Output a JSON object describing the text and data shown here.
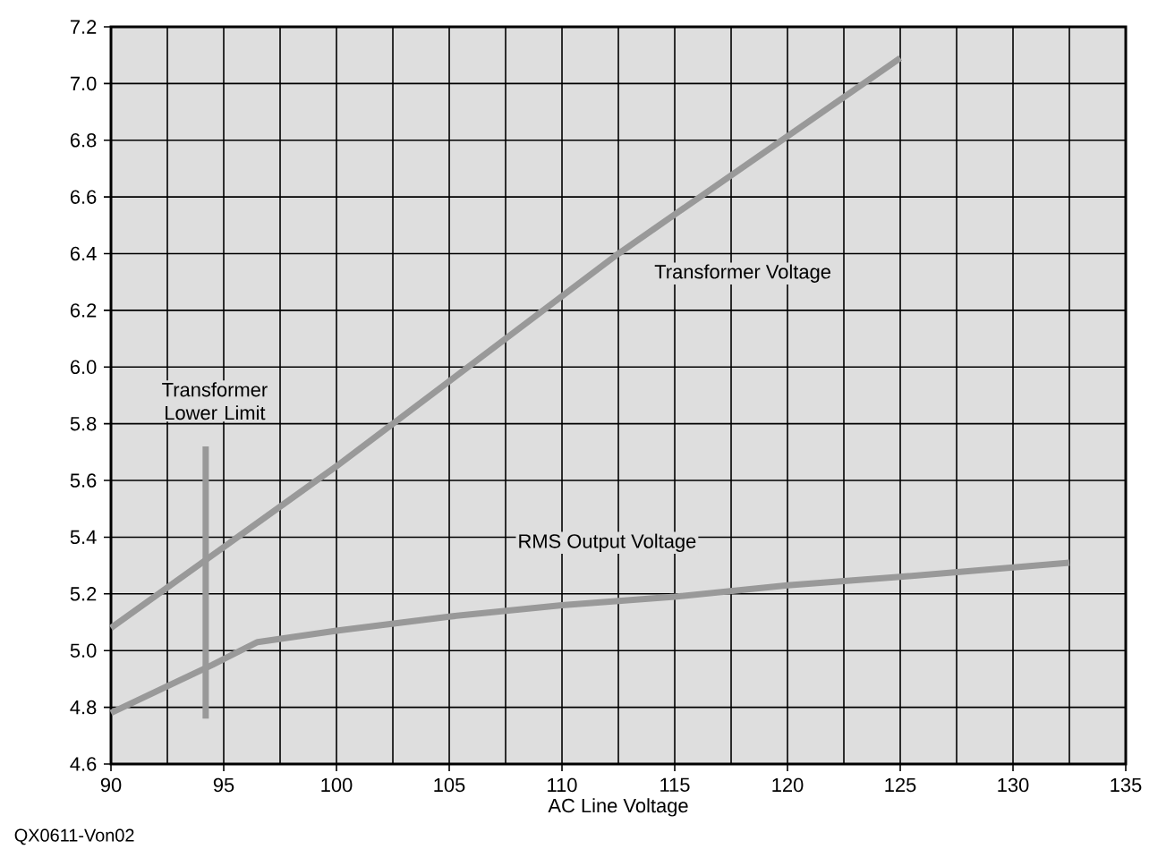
{
  "chart_data": {
    "type": "line",
    "xlabel": "AC Line Voltage",
    "annotations": [
      "QX0611-Von02"
    ],
    "xlim": [
      90,
      135
    ],
    "ylim": [
      4.6,
      7.2
    ],
    "xticks": [
      90,
      95,
      100,
      105,
      110,
      115,
      120,
      125,
      130,
      135
    ],
    "yticks": [
      4.6,
      4.8,
      {
        "value": 5.0,
        "label": "5.0"
      },
      5.2,
      5.4,
      5.6,
      5.8,
      {
        "value": 6.0,
        "label": "6.0"
      },
      6.2,
      6.4,
      6.6,
      6.8,
      {
        "value": 7.0,
        "label": "7.0"
      },
      7.2
    ],
    "grid": true,
    "line_style": "solid",
    "series": [
      {
        "name": "Transformer Voltage",
        "color": "#999999",
        "x": [
          90,
          100,
          112.5,
          125
        ],
        "values": [
          5.08,
          5.65,
          6.4,
          7.09
        ]
      },
      {
        "name": "RMS Output Voltage",
        "color": "#999999",
        "x": [
          90,
          94.5,
          96.5,
          100,
          105,
          110,
          115,
          120,
          125,
          132.5
        ],
        "values": [
          4.78,
          4.95,
          5.03,
          5.07,
          5.12,
          5.16,
          5.19,
          5.23,
          5.26,
          5.31
        ]
      },
      {
        "name": "Transformer Lower Limit",
        "color": "#999999",
        "x": [
          94.2,
          94.2
        ],
        "values": [
          4.76,
          5.72
        ]
      }
    ]
  }
}
